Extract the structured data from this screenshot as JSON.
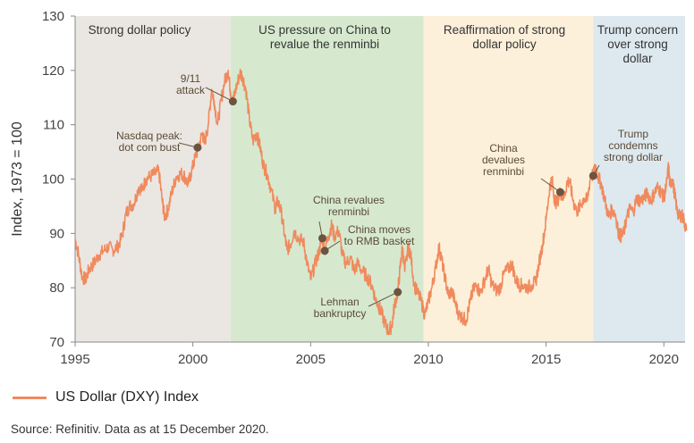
{
  "chart_data": {
    "type": "line",
    "ylabel": "Index, 1973 = 100",
    "xlabel": "",
    "xlim": [
      1995,
      2020.9
    ],
    "ylim": [
      70,
      130
    ],
    "x_ticks": [
      1995,
      2000,
      2005,
      2010,
      2015,
      2020
    ],
    "y_ticks": [
      70,
      80,
      90,
      100,
      110,
      120,
      130
    ],
    "colors": {
      "line": "#f08a5d",
      "marker": "#6b5440",
      "leader": "#6b5440",
      "annotation_text": "#5b4a35"
    },
    "bands": [
      {
        "label": [
          "Strong dollar policy"
        ],
        "start": 1995,
        "end": 2001.6,
        "color": "#eae7e3"
      },
      {
        "label": [
          "US pressure on China to",
          "revalue the renminbi"
        ],
        "start": 2001.6,
        "end": 2009.8,
        "color": "#d6e9cf"
      },
      {
        "label": [
          "Reaffirmation of strong",
          "dollar policy"
        ],
        "start": 2009.8,
        "end": 2017,
        "color": "#fdf0da"
      },
      {
        "label": [
          "Trump concern",
          "over strong",
          "dollar"
        ],
        "start": 2017,
        "end": 2020.9,
        "color": "#dde9ef"
      }
    ],
    "annotations": [
      {
        "text": [
          "Nasdaq peak:",
          "dot com bust"
        ],
        "x": 2000.2,
        "y": 105.8
      },
      {
        "text": [
          "9/11",
          "attack"
        ],
        "x": 2001.7,
        "y": 114.3
      },
      {
        "text": [
          "China revalues",
          "renminbi"
        ],
        "x": 2005.5,
        "y": 89.1
      },
      {
        "text": [
          "China moves",
          "to RMB basket"
        ],
        "x": 2005.6,
        "y": 86.8
      },
      {
        "text": [
          "Lehman",
          "bankruptcy"
        ],
        "x": 2008.7,
        "y": 79.2
      },
      {
        "text": [
          "China",
          "devalues",
          "renminbi"
        ],
        "x": 2015.6,
        "y": 97.6
      },
      {
        "text": [
          "Trump",
          "condemns",
          "strong dollar"
        ],
        "x": 2017,
        "y": 100.6
      }
    ],
    "series": [
      {
        "name": "US Dollar (DXY) Index",
        "points": [
          [
            1995,
            89.0
          ],
          [
            1995.15,
            86.0
          ],
          [
            1995.3,
            82.0
          ],
          [
            1995.45,
            81.5
          ],
          [
            1995.6,
            83.5
          ],
          [
            1995.8,
            84.5
          ],
          [
            1996,
            86.0
          ],
          [
            1996.2,
            86.8
          ],
          [
            1996.4,
            87.5
          ],
          [
            1996.6,
            87.0
          ],
          [
            1996.8,
            87.5
          ],
          [
            1997,
            89.5
          ],
          [
            1997.15,
            93.5
          ],
          [
            1997.3,
            95.0
          ],
          [
            1997.5,
            95.5
          ],
          [
            1997.7,
            98.5
          ],
          [
            1997.85,
            98.0
          ],
          [
            1998,
            100.0
          ],
          [
            1998.2,
            100.5
          ],
          [
            1998.4,
            101.0
          ],
          [
            1998.55,
            101.5
          ],
          [
            1998.7,
            96.0
          ],
          [
            1998.8,
            93.0
          ],
          [
            1998.95,
            94.5
          ],
          [
            1999.1,
            97.5
          ],
          [
            1999.3,
            100.5
          ],
          [
            1999.5,
            101.0
          ],
          [
            1999.65,
            100.5
          ],
          [
            1999.8,
            99.0
          ],
          [
            1999.95,
            101.5
          ],
          [
            2000.1,
            104.0
          ],
          [
            2000.25,
            106.0
          ],
          [
            2000.4,
            108.5
          ],
          [
            2000.5,
            106.5
          ],
          [
            2000.65,
            110.0
          ],
          [
            2000.8,
            116.5
          ],
          [
            2000.9,
            114.5
          ],
          [
            2001.05,
            110.0
          ],
          [
            2001.2,
            114.5
          ],
          [
            2001.35,
            118.0
          ],
          [
            2001.5,
            120.0
          ],
          [
            2001.6,
            116.0
          ],
          [
            2001.7,
            114.3
          ],
          [
            2001.85,
            117.0
          ],
          [
            2002.0,
            119.5
          ],
          [
            2002.1,
            119.0
          ],
          [
            2002.25,
            116.5
          ],
          [
            2002.4,
            111.0
          ],
          [
            2002.55,
            107.0
          ],
          [
            2002.7,
            108.5
          ],
          [
            2002.85,
            106.0
          ],
          [
            2003.0,
            102.5
          ],
          [
            2003.15,
            101.0
          ],
          [
            2003.3,
            98.5
          ],
          [
            2003.5,
            94.5
          ],
          [
            2003.6,
            96.0
          ],
          [
            2003.75,
            94.0
          ],
          [
            2003.9,
            89.5
          ],
          [
            2004.0,
            87.0
          ],
          [
            2004.15,
            88.0
          ],
          [
            2004.3,
            90.5
          ],
          [
            2004.5,
            89.0
          ],
          [
            2004.7,
            88.5
          ],
          [
            2004.85,
            84.5
          ],
          [
            2005.0,
            81.5
          ],
          [
            2005.2,
            84.5
          ],
          [
            2005.35,
            86.5
          ],
          [
            2005.5,
            89.1
          ],
          [
            2005.6,
            86.8
          ],
          [
            2005.75,
            89.5
          ],
          [
            2005.9,
            91.5
          ],
          [
            2006.0,
            89.5
          ],
          [
            2006.2,
            90.5
          ],
          [
            2006.35,
            86.0
          ],
          [
            2006.5,
            84.5
          ],
          [
            2006.7,
            85.5
          ],
          [
            2006.85,
            83.0
          ],
          [
            2007.0,
            84.5
          ],
          [
            2007.2,
            83.0
          ],
          [
            2007.4,
            82.0
          ],
          [
            2007.6,
            80.5
          ],
          [
            2007.75,
            78.0
          ],
          [
            2007.9,
            76.5
          ],
          [
            2008.0,
            75.5
          ],
          [
            2008.15,
            73.5
          ],
          [
            2008.3,
            72.0
          ],
          [
            2008.45,
            73.0
          ],
          [
            2008.55,
            76.5
          ],
          [
            2008.7,
            79.2
          ],
          [
            2008.8,
            83.5
          ],
          [
            2008.9,
            87.5
          ],
          [
            2009.0,
            83.0
          ],
          [
            2009.15,
            87.5
          ],
          [
            2009.25,
            86.0
          ],
          [
            2009.4,
            80.5
          ],
          [
            2009.55,
            79.0
          ],
          [
            2009.7,
            77.5
          ],
          [
            2009.85,
            75.0
          ],
          [
            2010.0,
            77.5
          ],
          [
            2010.15,
            80.0
          ],
          [
            2010.3,
            83.5
          ],
          [
            2010.45,
            87.5
          ],
          [
            2010.55,
            85.5
          ],
          [
            2010.7,
            82.0
          ],
          [
            2010.85,
            78.5
          ],
          [
            2011.0,
            79.5
          ],
          [
            2011.15,
            77.0
          ],
          [
            2011.3,
            75.0
          ],
          [
            2011.45,
            74.5
          ],
          [
            2011.6,
            74.0
          ],
          [
            2011.75,
            77.0
          ],
          [
            2011.9,
            79.5
          ],
          [
            2012.05,
            80.5
          ],
          [
            2012.2,
            79.0
          ],
          [
            2012.4,
            81.5
          ],
          [
            2012.55,
            83.5
          ],
          [
            2012.7,
            80.5
          ],
          [
            2012.9,
            79.5
          ],
          [
            2013.05,
            80.0
          ],
          [
            2013.2,
            82.5
          ],
          [
            2013.4,
            83.5
          ],
          [
            2013.55,
            84.5
          ],
          [
            2013.7,
            81.5
          ],
          [
            2013.85,
            80.5
          ],
          [
            2014.0,
            80.5
          ],
          [
            2014.2,
            80.0
          ],
          [
            2014.4,
            80.5
          ],
          [
            2014.55,
            81.0
          ],
          [
            2014.7,
            84.5
          ],
          [
            2014.85,
            88.0
          ],
          [
            2015.0,
            92.5
          ],
          [
            2015.15,
            98.5
          ],
          [
            2015.25,
            100.0
          ],
          [
            2015.35,
            96.5
          ],
          [
            2015.45,
            95.5
          ],
          [
            2015.6,
            97.6
          ],
          [
            2015.75,
            96.5
          ],
          [
            2015.9,
            99.5
          ],
          [
            2016.0,
            99.5
          ],
          [
            2016.15,
            96.0
          ],
          [
            2016.3,
            94.0
          ],
          [
            2016.45,
            95.0
          ],
          [
            2016.6,
            96.5
          ],
          [
            2016.75,
            96.0
          ],
          [
            2016.9,
            101.0
          ],
          [
            2017.0,
            100.6
          ],
          [
            2017.1,
            102.5
          ],
          [
            2017.2,
            100.5
          ],
          [
            2017.35,
            99.0
          ],
          [
            2017.5,
            96.0
          ],
          [
            2017.65,
            93.0
          ],
          [
            2017.8,
            94.5
          ],
          [
            2017.95,
            93.5
          ],
          [
            2018.05,
            90.5
          ],
          [
            2018.15,
            89.5
          ],
          [
            2018.3,
            90.0
          ],
          [
            2018.4,
            92.5
          ],
          [
            2018.55,
            94.5
          ],
          [
            2018.7,
            94.0
          ],
          [
            2018.85,
            96.5
          ],
          [
            2019.0,
            96.0
          ],
          [
            2019.15,
            96.5
          ],
          [
            2019.3,
            97.5
          ],
          [
            2019.45,
            96.0
          ],
          [
            2019.6,
            97.5
          ],
          [
            2019.75,
            98.5
          ],
          [
            2019.9,
            97.5
          ],
          [
            2020.0,
            96.5
          ],
          [
            2020.1,
            98.5
          ],
          [
            2020.2,
            102.5
          ],
          [
            2020.25,
            99.0
          ],
          [
            2020.35,
            100.0
          ],
          [
            2020.45,
            97.5
          ],
          [
            2020.55,
            94.5
          ],
          [
            2020.65,
            93.0
          ],
          [
            2020.75,
            93.5
          ],
          [
            2020.85,
            92.5
          ],
          [
            2020.96,
            90.5
          ]
        ]
      }
    ]
  },
  "legend": {
    "label": "US Dollar (DXY) Index"
  },
  "source": "Source: Refinitiv. Data as at 15 December 2020."
}
